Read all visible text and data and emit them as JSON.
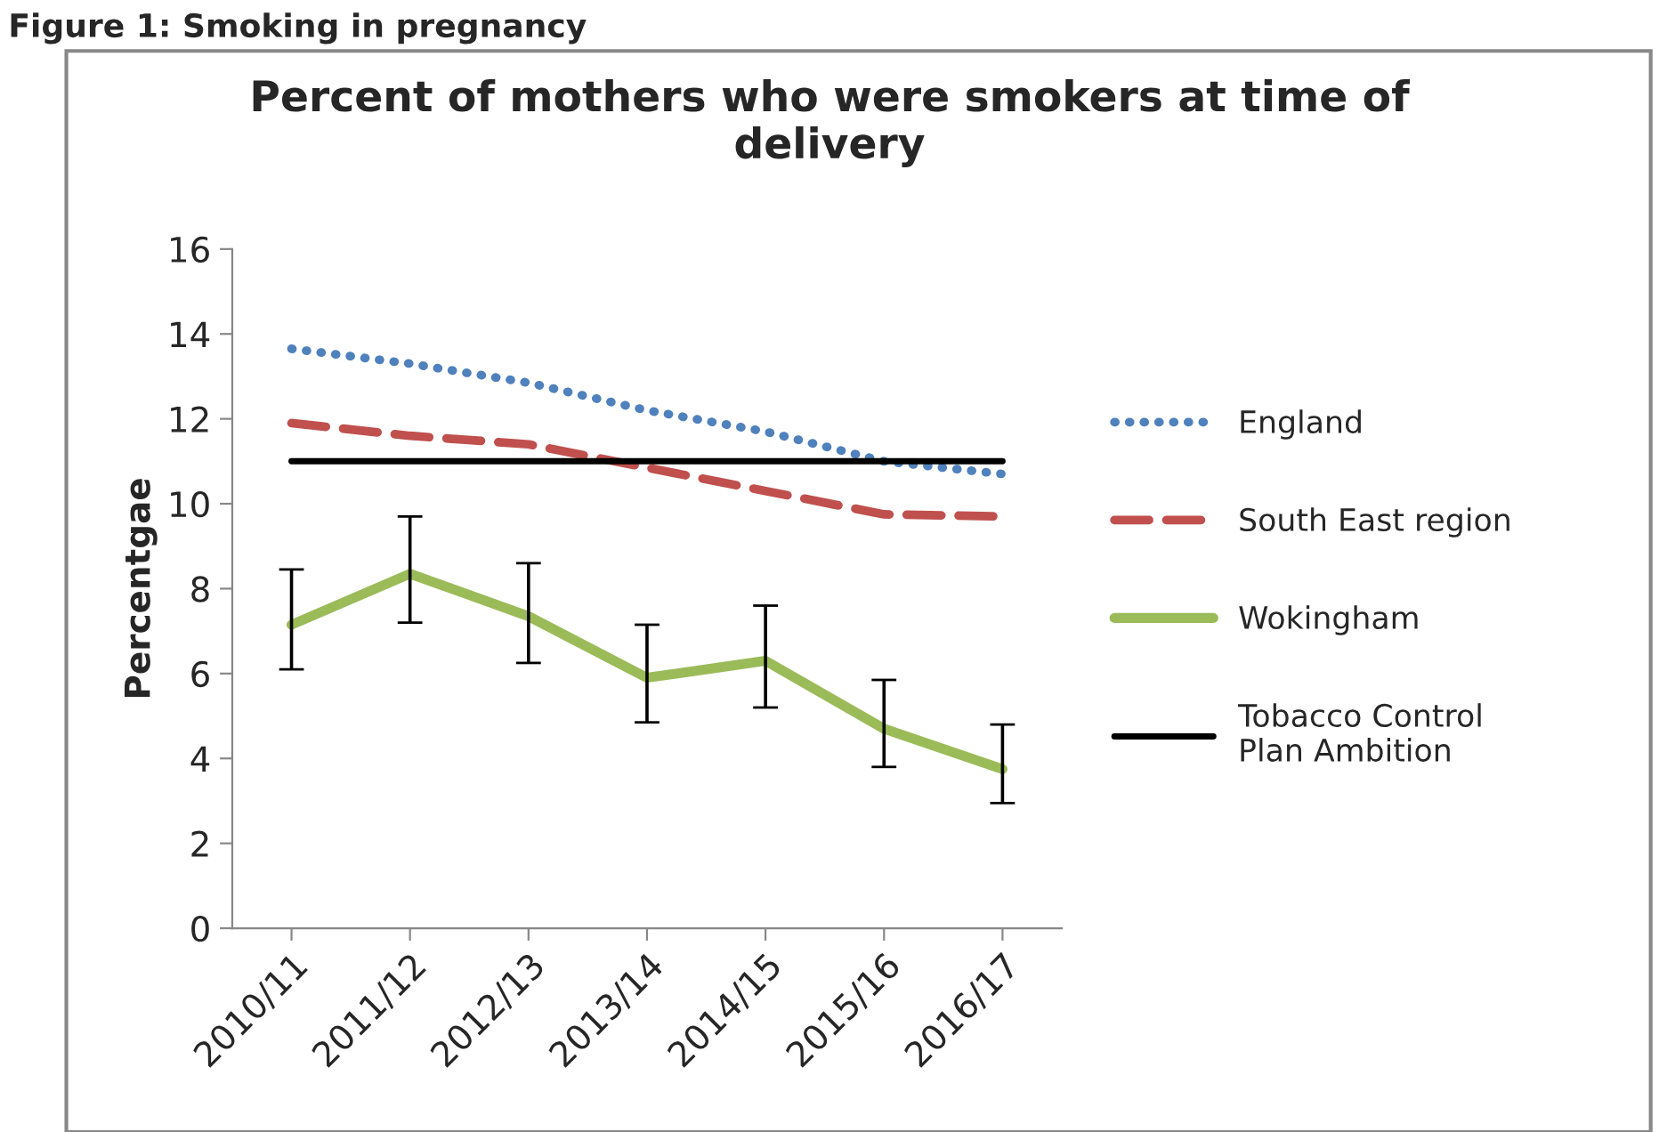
{
  "chart_data": {
    "type": "line",
    "title": "Percent of mothers who were smokers at time of delivery",
    "ylabel": "Percentgae",
    "annotations": [
      "Figure 1: Smoking in pregnancy"
    ],
    "categories": [
      "2010/11",
      "2011/12",
      "2012/13",
      "2013/14",
      "2014/15",
      "2015/16",
      "2016/17"
    ],
    "series": [
      {
        "name": "England",
        "color": "#4f81bd",
        "line_style": "dotted",
        "values": [
          13.65,
          13.3,
          12.85,
          12.2,
          11.7,
          11.0,
          10.7
        ]
      },
      {
        "name": "South East region",
        "color": "#c0504d",
        "line_style": "dashed",
        "values": [
          11.9,
          11.6,
          11.4,
          10.85,
          10.3,
          9.75,
          9.7
        ]
      },
      {
        "name": "Wokingham",
        "color": "#9bbb59",
        "line_style": "solid",
        "values": [
          7.15,
          8.35,
          7.35,
          5.9,
          6.3,
          4.7,
          3.75
        ],
        "errors": [
          [
            6.1,
            8.45
          ],
          [
            7.2,
            9.7
          ],
          [
            6.25,
            8.6
          ],
          [
            4.85,
            7.15
          ],
          [
            5.2,
            7.6
          ],
          [
            3.8,
            5.85
          ],
          [
            2.95,
            4.8
          ]
        ]
      },
      {
        "name": "Tobacco Control Plan Ambition",
        "color": "#000000",
        "line_style": "solid",
        "values": [
          11,
          11,
          11,
          11,
          11,
          11,
          11
        ]
      }
    ],
    "ylim": [
      0,
      16
    ],
    "yticks": [
      0,
      2,
      4,
      6,
      8,
      10,
      12,
      14,
      16
    ],
    "grid": false,
    "legend": "right",
    "marker": "none"
  }
}
